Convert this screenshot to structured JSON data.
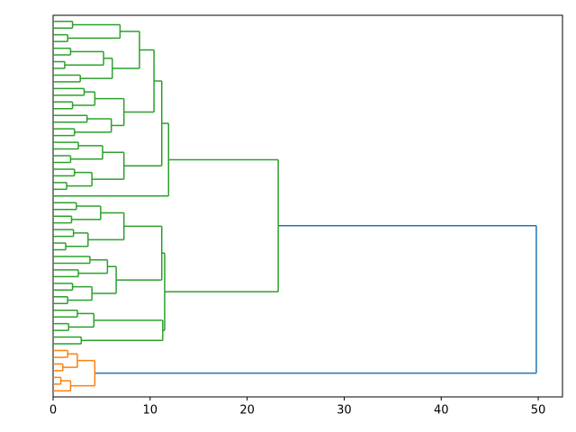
{
  "chart_data": {
    "type": "dendrogram",
    "orientation": "horizontal",
    "xlim": [
      0,
      52.5
    ],
    "xticks": [
      0,
      10,
      20,
      30,
      40,
      50
    ],
    "tree": {
      "height": 49.8,
      "color": "#1f77b4",
      "children": [
        {
          "height": 23.2,
          "color": "#2ca02c",
          "children": [
            {
              "height": 11.9,
              "children": [
                {
                  "height": 11.2,
                  "children": [
                    {
                      "height": 10.4,
                      "children": [
                        {
                          "height": 8.9,
                          "children": [
                            {
                              "height": 6.9,
                              "children": [
                                {
                                  "height": 2.0,
                                  "children": [
                                    {
                                      "height": 0
                                    },
                                    {
                                      "height": 0
                                    }
                                  ]
                                },
                                {
                                  "height": 1.5,
                                  "children": [
                                    {
                                      "height": 0
                                    },
                                    {
                                      "height": 0
                                    }
                                  ]
                                }
                              ]
                            },
                            {
                              "height": 6.1,
                              "children": [
                                {
                                  "height": 5.2,
                                  "children": [
                                    {
                                      "height": 1.8,
                                      "children": [
                                        {
                                          "height": 0
                                        },
                                        {
                                          "height": 0
                                        }
                                      ]
                                    },
                                    {
                                      "height": 1.2,
                                      "children": [
                                        {
                                          "height": 0
                                        },
                                        {
                                          "height": 0
                                        }
                                      ]
                                    }
                                  ]
                                },
                                {
                                  "height": 2.8,
                                  "children": [
                                    {
                                      "height": 0
                                    },
                                    {
                                      "height": 0
                                    }
                                  ]
                                }
                              ]
                            }
                          ]
                        },
                        {
                          "height": 7.3,
                          "children": [
                            {
                              "height": 4.3,
                              "children": [
                                {
                                  "height": 3.2,
                                  "children": [
                                    {
                                      "height": 0
                                    },
                                    {
                                      "height": 0
                                    }
                                  ]
                                },
                                {
                                  "height": 2.0,
                                  "children": [
                                    {
                                      "height": 0
                                    },
                                    {
                                      "height": 0
                                    }
                                  ]
                                }
                              ]
                            },
                            {
                              "height": 6.0,
                              "children": [
                                {
                                  "height": 3.5,
                                  "children": [
                                    {
                                      "height": 0
                                    },
                                    {
                                      "height": 0
                                    }
                                  ]
                                },
                                {
                                  "height": 2.2,
                                  "children": [
                                    {
                                      "height": 0
                                    },
                                    {
                                      "height": 0
                                    }
                                  ]
                                }
                              ]
                            }
                          ]
                        }
                      ]
                    },
                    {
                      "height": 7.3,
                      "children": [
                        {
                          "height": 5.1,
                          "children": [
                            {
                              "height": 2.6,
                              "children": [
                                {
                                  "height": 0
                                },
                                {
                                  "height": 0
                                }
                              ]
                            },
                            {
                              "height": 1.8,
                              "children": [
                                {
                                  "height": 0
                                },
                                {
                                  "height": 0
                                }
                              ]
                            }
                          ]
                        },
                        {
                          "height": 4.0,
                          "children": [
                            {
                              "height": 2.2,
                              "children": [
                                {
                                  "height": 0
                                },
                                {
                                  "height": 0
                                }
                              ]
                            },
                            {
                              "height": 1.4,
                              "children": [
                                {
                                  "height": 0
                                },
                                {
                                  "height": 0
                                }
                              ]
                            }
                          ]
                        }
                      ]
                    }
                  ]
                },
                {
                  "height": 0
                }
              ]
            },
            {
              "height": 11.5,
              "children": [
                {
                  "height": 11.2,
                  "children": [
                    {
                      "height": 7.3,
                      "children": [
                        {
                          "height": 4.9,
                          "children": [
                            {
                              "height": 2.4,
                              "children": [
                                {
                                  "height": 0
                                },
                                {
                                  "height": 0
                                }
                              ]
                            },
                            {
                              "height": 1.9,
                              "children": [
                                {
                                  "height": 0
                                },
                                {
                                  "height": 0
                                }
                              ]
                            }
                          ]
                        },
                        {
                          "height": 3.6,
                          "children": [
                            {
                              "height": 2.1,
                              "children": [
                                {
                                  "height": 0
                                },
                                {
                                  "height": 0
                                }
                              ]
                            },
                            {
                              "height": 1.3,
                              "children": [
                                {
                                  "height": 0
                                },
                                {
                                  "height": 0
                                }
                              ]
                            }
                          ]
                        }
                      ]
                    },
                    {
                      "height": 6.5,
                      "children": [
                        {
                          "height": 5.6,
                          "children": [
                            {
                              "height": 3.8,
                              "children": [
                                {
                                  "height": 0
                                },
                                {
                                  "height": 0
                                }
                              ]
                            },
                            {
                              "height": 2.6,
                              "children": [
                                {
                                  "height": 0
                                },
                                {
                                  "height": 0
                                }
                              ]
                            }
                          ]
                        },
                        {
                          "height": 4.0,
                          "children": [
                            {
                              "height": 2.0,
                              "children": [
                                {
                                  "height": 0
                                },
                                {
                                  "height": 0
                                }
                              ]
                            },
                            {
                              "height": 1.5,
                              "children": [
                                {
                                  "height": 0
                                },
                                {
                                  "height": 0
                                }
                              ]
                            }
                          ]
                        }
                      ]
                    }
                  ]
                },
                {
                  "height": 11.3,
                  "children": [
                    {
                      "height": 4.2,
                      "children": [
                        {
                          "height": 2.5,
                          "children": [
                            {
                              "height": 0
                            },
                            {
                              "height": 0
                            }
                          ]
                        },
                        {
                          "height": 1.6,
                          "children": [
                            {
                              "height": 0
                            },
                            {
                              "height": 0
                            }
                          ]
                        }
                      ]
                    },
                    {
                      "height": 2.9,
                      "children": [
                        {
                          "height": 0
                        },
                        {
                          "height": 0
                        }
                      ]
                    }
                  ]
                }
              ]
            }
          ]
        },
        {
          "height": 4.3,
          "color": "#ff7f0e",
          "children": [
            {
              "height": 2.5,
              "children": [
                {
                  "height": 1.5,
                  "children": [
                    {
                      "height": 0
                    },
                    {
                      "height": 0
                    }
                  ]
                },
                {
                  "height": 1.0,
                  "children": [
                    {
                      "height": 0
                    },
                    {
                      "height": 0
                    }
                  ]
                }
              ]
            },
            {
              "height": 1.8,
              "children": [
                {
                  "height": 0.8,
                  "children": [
                    {
                      "height": 0
                    },
                    {
                      "height": 0
                    }
                  ]
                },
                {
                  "height": 0
                }
              ]
            }
          ]
        }
      ]
    }
  }
}
